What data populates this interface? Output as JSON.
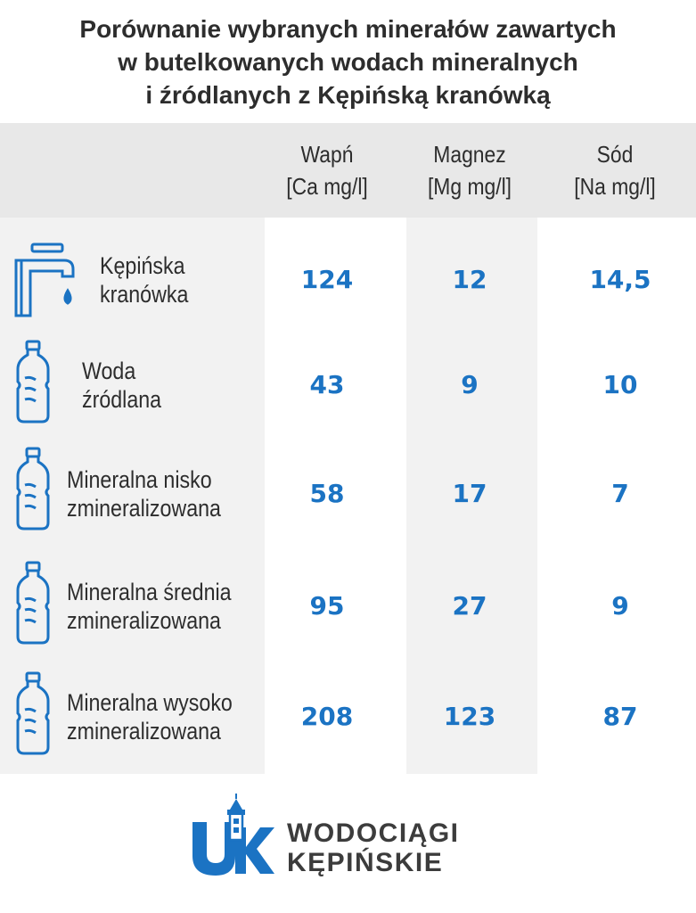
{
  "title_lines": [
    "Porównanie wybranych minerałów zawartych",
    "w butelkowanych wodach mineralnych",
    "i źródlanych z Kępińską kranówką"
  ],
  "chart_data": {
    "type": "table",
    "columns": [
      {
        "name": "Wapń",
        "unit": "[Ca mg/l]"
      },
      {
        "name": "Magnez",
        "unit": "[Mg mg/l]"
      },
      {
        "name": "Sód",
        "unit": "[Na mg/l]"
      }
    ],
    "rows": [
      {
        "label": [
          "Kępińska",
          "kranówka"
        ],
        "icon": "faucet-icon",
        "values": [
          "124",
          "12",
          "14,5"
        ]
      },
      {
        "label": [
          "Woda",
          "źródlana"
        ],
        "icon": "bottle-icon",
        "values": [
          "43",
          "9",
          "10"
        ]
      },
      {
        "label": [
          "Mineralna nisko",
          "zmineralizowana"
        ],
        "icon": "bottle-icon",
        "values": [
          "58",
          "17",
          "7"
        ]
      },
      {
        "label": [
          "Mineralna średnia",
          "zmineralizowana"
        ],
        "icon": "bottle-icon",
        "values": [
          "95",
          "27",
          "9"
        ]
      },
      {
        "label": [
          "Mineralna wysoko",
          "zmineralizowana"
        ],
        "icon": "bottle-icon",
        "values": [
          "208",
          "123",
          "87"
        ]
      }
    ]
  },
  "logo": {
    "lines": [
      "WODOCIĄGI",
      "KĘPIŃSKIE"
    ],
    "mark": "WK",
    "icon": "water-tower-logo-icon"
  },
  "colors": {
    "value": "#1b73c3",
    "icon": "#1b73c3",
    "text": "#2d2d2d",
    "header_band": "#e8e8e8",
    "column_band": "#f2f2f2"
  }
}
